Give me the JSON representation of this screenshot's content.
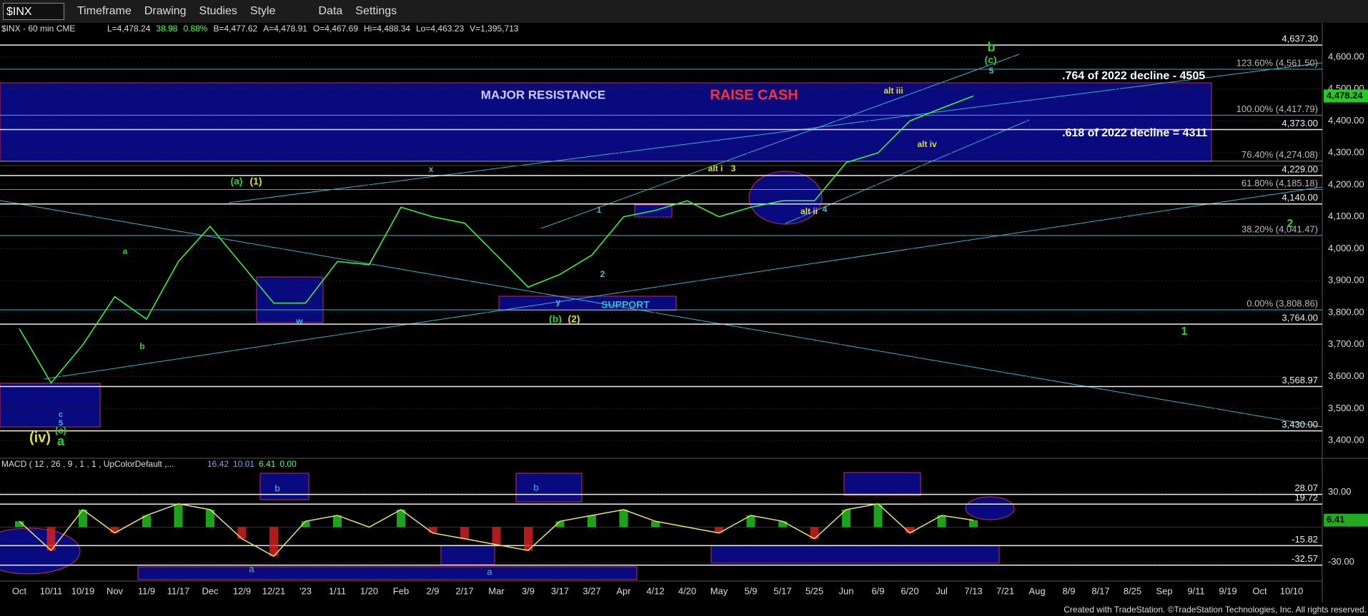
{
  "toolbar": {
    "symbol": "$INX",
    "buttons": [
      "Timeframe",
      "Drawing",
      "Studies",
      "Style",
      "Data",
      "Settings"
    ]
  },
  "footer": "Created with TradeStation. ©TradeStation Technologies, Inc. All rights reserved.",
  "chart_data": [
    {
      "type": "line",
      "title": "$INX - 60 min CME",
      "header": [
        "L=4,478.24",
        "38.98",
        "0.88%",
        "B=4,477.62",
        "A=4,478.91",
        "O=4,467.69",
        "Hi=4,488.34",
        "Lo=4,463.23",
        "V=1,395,713"
      ],
      "last_price_label": "4,478.24",
      "categories": [
        "Oct",
        "10/11",
        "10/19",
        "Nov",
        "11/9",
        "11/17",
        "Dec",
        "12/9",
        "12/21",
        "'23",
        "1/11",
        "1/20",
        "Feb",
        "2/9",
        "2/17",
        "Mar",
        "3/9",
        "3/17",
        "3/27",
        "Apr",
        "4/12",
        "4/20",
        "May",
        "5/9",
        "5/17",
        "5/25",
        "Jun",
        "6/9",
        "6/20",
        "Jul",
        "7/13",
        "7/21",
        "Aug",
        "8/9",
        "8/17",
        "8/25",
        "Sep",
        "9/11",
        "9/19",
        "Oct",
        "10/10"
      ],
      "values": [
        3750,
        3580,
        3700,
        3850,
        3780,
        3960,
        4070,
        3950,
        3830,
        3830,
        3960,
        3950,
        4130,
        4100,
        4080,
        3980,
        3880,
        3920,
        3980,
        4100,
        4120,
        4150,
        4100,
        4130,
        4150,
        4150,
        4270,
        4300,
        4400,
        4440,
        4478,
        null,
        null,
        null,
        null,
        null,
        null,
        null,
        null,
        null,
        null
      ],
      "color": "#33ff33",
      "ylim": [
        3360,
        4680
      ],
      "yticks": [
        {
          "value": 3400,
          "label": "3,400.00"
        },
        {
          "value": 3500,
          "label": "3,500.00"
        },
        {
          "value": 3600,
          "label": "3,600.00"
        },
        {
          "value": 3700,
          "label": "3,700.00"
        },
        {
          "value": 3800,
          "label": "3,800.00"
        },
        {
          "value": 3900,
          "label": "3,900.00"
        },
        {
          "value": 4000,
          "label": "4,000.00"
        },
        {
          "value": 4100,
          "label": "4,100.00"
        },
        {
          "value": 4200,
          "label": "4,200.00"
        },
        {
          "value": 4300,
          "label": "4,300.00"
        },
        {
          "value": 4400,
          "label": "4,400.00"
        },
        {
          "value": 4500,
          "label": "4,500.00"
        },
        {
          "value": 4600,
          "label": "4,600.00"
        }
      ],
      "levels": [
        {
          "value": 4637.3,
          "label": "4,637.30"
        },
        {
          "value": 4561.5,
          "label": "123.60% (4,561.50)"
        },
        {
          "value": 4417.79,
          "label": "100.00% (4,417.79)"
        },
        {
          "value": 4373,
          "label": "4,373.00"
        },
        {
          "value": 4274.08,
          "label": "76.40% (4,274.08)"
        },
        {
          "value": 4229,
          "label": "4,229.00"
        },
        {
          "value": 4185.18,
          "label": "61.80% (4,185.18)"
        },
        {
          "value": 4140,
          "label": "4,140.00"
        },
        {
          "value": 4041.47,
          "label": "38.20% (4,041.47)"
        },
        {
          "value": 3808.86,
          "label": "0.00% (3,808.86)"
        },
        {
          "value": 3764,
          "label": "3,764.00"
        },
        {
          "value": 3568.97,
          "label": "3,568.97"
        },
        {
          "value": 3430,
          "label": "3,430.00"
        }
      ],
      "notes": [
        "MAJOR RESISTANCE",
        "RAISE CASH",
        ".764 of 2022 decline - 4505",
        ".618 of 2022 decline = 4311",
        "SUPPORT"
      ],
      "wave_labels": [
        "b",
        "(c)",
        "5",
        "alt iii",
        "alt iv",
        "alt i",
        "3",
        "alt ii",
        "4",
        "x",
        "1",
        "2",
        "(a)",
        "(1)",
        "w",
        "y",
        "(b)",
        "(2)",
        "a",
        "b",
        "c",
        "5",
        "(c)",
        "(iv)",
        "a",
        "2",
        "1"
      ]
    },
    {
      "type": "line",
      "title": "MACD ( 12 , 26 , 9 , 1 , 1 , UpColorDefault ,...",
      "header": [
        "16.42",
        "10.01",
        "6.41",
        "0.00"
      ],
      "last_value_label": "6.41",
      "values": [
        5,
        -20,
        15,
        -5,
        10,
        20,
        15,
        -10,
        -25,
        5,
        10,
        0,
        15,
        -5,
        -10,
        -15,
        -20,
        5,
        10,
        15,
        5,
        0,
        -5,
        10,
        5,
        -10,
        15,
        20,
        -5,
        10,
        6,
        null,
        null,
        null,
        null,
        null,
        null,
        null,
        null,
        null,
        null
      ],
      "color": "#e6e66a",
      "ylim": [
        -45,
        56
      ],
      "yticks": [
        {
          "value": 30,
          "label": "30.00"
        },
        {
          "value": -30,
          "label": "-30.00"
        }
      ],
      "levels": [
        {
          "value": 28.07,
          "label": "28.07"
        },
        {
          "value": 19.72,
          "label": "19.72"
        },
        {
          "value": -15.82,
          "label": "-15.82"
        },
        {
          "value": -32.57,
          "label": "-32.57"
        }
      ],
      "wave_labels": [
        "b",
        "b",
        "a",
        "a"
      ]
    }
  ]
}
